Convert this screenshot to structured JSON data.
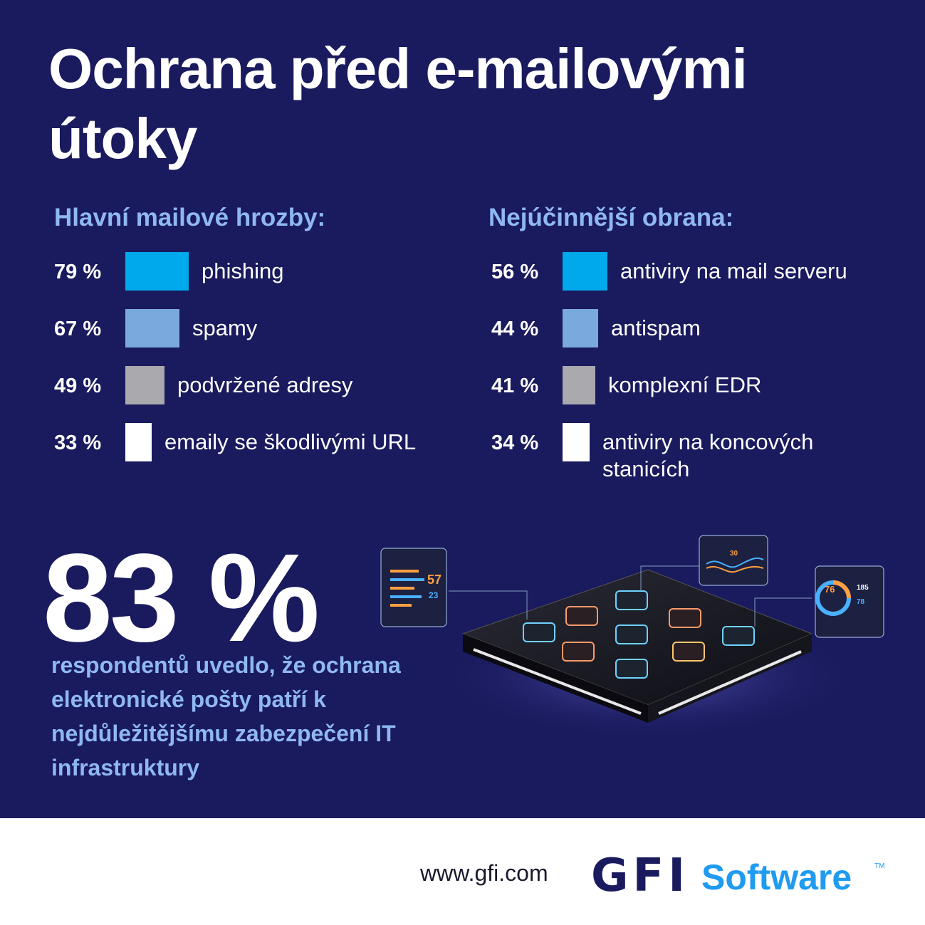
{
  "title": "Ochrana před e-mailovými útoky",
  "threats": {
    "heading": "Hlavní mailové hrozby:",
    "items": [
      {
        "pct_label": "79 %",
        "value": 79,
        "label": "phishing",
        "color": "#00a8ec"
      },
      {
        "pct_label": "67 %",
        "value": 67,
        "label": "spamy",
        "color": "#7aa9de"
      },
      {
        "pct_label": "49 %",
        "value": 49,
        "label": "podvržené adresy",
        "color": "#a9a9ae"
      },
      {
        "pct_label": "33 %",
        "value": 33,
        "label": "emaily se škodlivými URL",
        "color": "#ffffff"
      }
    ]
  },
  "defense": {
    "heading": "Nejúčinnější obrana:",
    "items": [
      {
        "pct_label": "56 %",
        "value": 56,
        "label": "antiviry na mail serveru",
        "color": "#00a8ec"
      },
      {
        "pct_label": "44 %",
        "value": 44,
        "label": "antispam",
        "color": "#7aa9de"
      },
      {
        "pct_label": "41 %",
        "value": 41,
        "label": "komplexní EDR",
        "color": "#a9a9ae"
      },
      {
        "pct_label": "34 %",
        "value": 34,
        "label": "antiviry na koncových stanicích",
        "color": "#ffffff"
      }
    ]
  },
  "highlight": {
    "value": "83 %",
    "text": "respondentů uvedlo, že ochrana elektronické pošty patří k nejdůležitějšímu zabezpečení IT infrastruktury"
  },
  "illustration": {
    "bar_panel_values": [
      "57",
      "23"
    ],
    "line_panel_value": "30",
    "donut_panel_values": [
      "76",
      "185",
      "78"
    ]
  },
  "footer": {
    "url": "www.gfi.com",
    "logo_mark": "GFI",
    "logo_word": "Software",
    "logo_tm": "TM"
  },
  "chart_data": [
    {
      "type": "bar",
      "title": "Hlavní mailové hrozby:",
      "categories": [
        "phishing",
        "spamy",
        "podvržené adresy",
        "emaily se škodlivými URL"
      ],
      "values": [
        79,
        67,
        49,
        33
      ]
    },
    {
      "type": "bar",
      "title": "Nejúčinnější obrana:",
      "categories": [
        "antiviry na mail serveru",
        "antispam",
        "komplexní EDR",
        "antiviry na koncových stanicích"
      ],
      "values": [
        56,
        44,
        41,
        34
      ]
    }
  ]
}
